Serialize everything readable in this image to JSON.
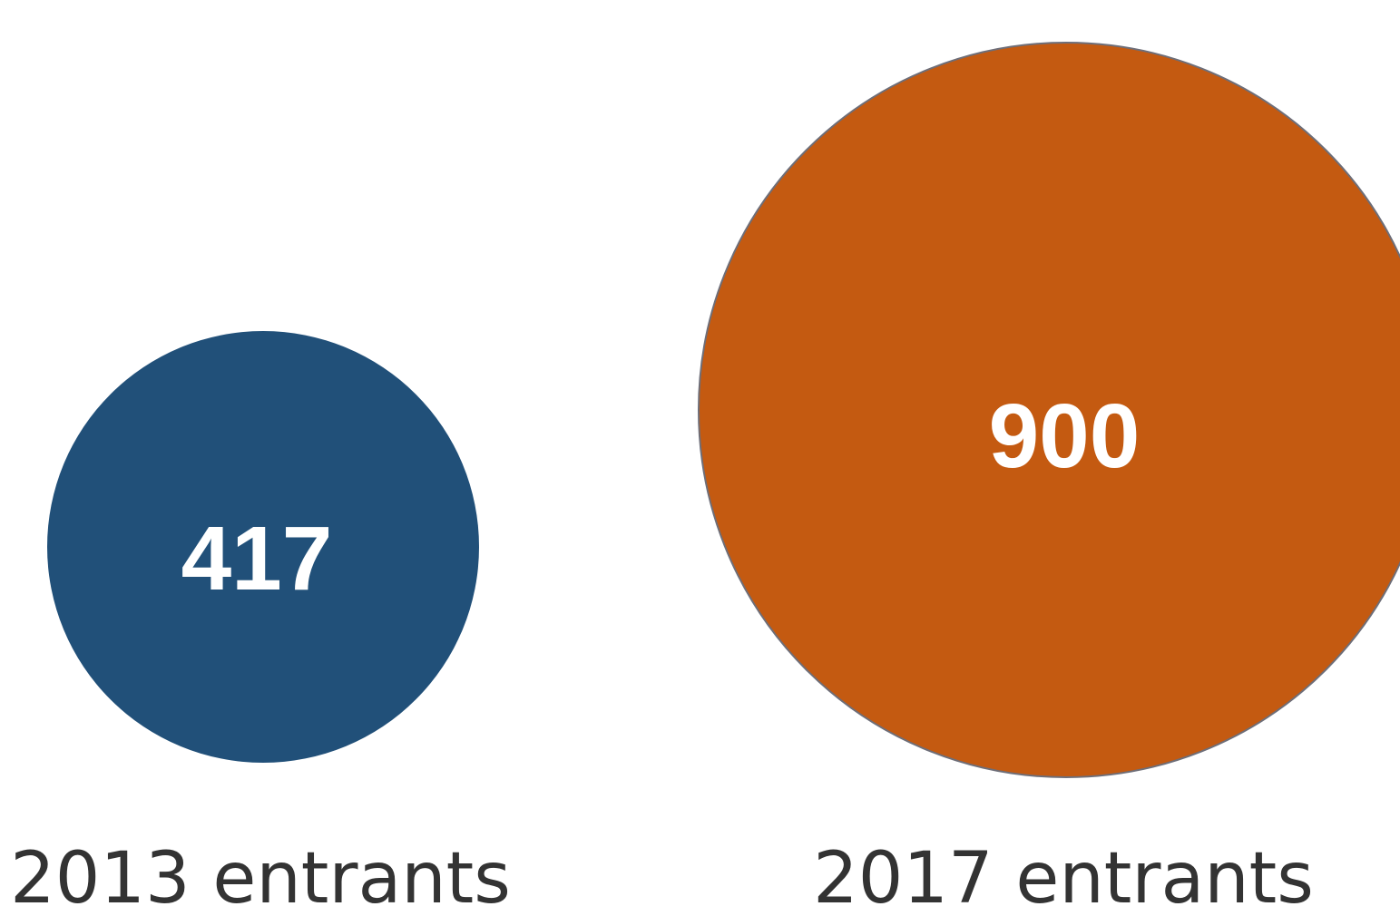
{
  "chart_data": {
    "type": "bubble",
    "categories": [
      "2013 entrants",
      "2017 entrants"
    ],
    "values": [
      417,
      900
    ],
    "colors": [
      "#215079",
      "#c45a11"
    ],
    "value_labels": [
      "417",
      "900"
    ]
  }
}
